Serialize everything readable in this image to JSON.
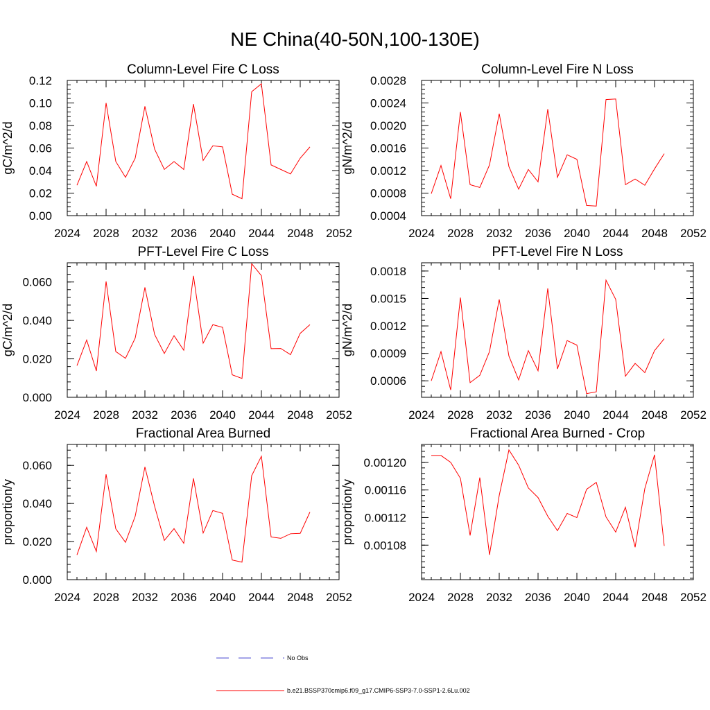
{
  "title": "NE China(40-50N,100-130E)",
  "legend": [
    {
      "label": "No Obs",
      "style": "dashed",
      "color": "#4a4ad0"
    },
    {
      "label": "b.e21.BSSP370cmip6.f09_g17.CMIP6-SSP3-7.0-SSP1-2.6Lu.002",
      "style": "solid",
      "color": "#ff0000"
    }
  ],
  "chart_data": [
    {
      "type": "line",
      "title": "Column-Level Fire C Loss",
      "ylabel": "gC/m^2/d",
      "xlim": [
        2024,
        2052
      ],
      "ylim": [
        0,
        0.12
      ],
      "xticks": [
        2024,
        2028,
        2032,
        2036,
        2040,
        2044,
        2048,
        2052
      ],
      "yticks": [
        0.0,
        0.02,
        0.04,
        0.06,
        0.08,
        0.1,
        0.12
      ],
      "ytick_labels": [
        "0.00",
        "0.02",
        "0.04",
        "0.06",
        "0.08",
        "0.10",
        "0.12"
      ],
      "series": [
        {
          "color": "#ff0000",
          "x": [
            2025,
            2026,
            2027,
            2028,
            2029,
            2030,
            2031,
            2032,
            2033,
            2034,
            2035,
            2036,
            2037,
            2038,
            2039,
            2040,
            2041,
            2042,
            2043,
            2044,
            2045,
            2046,
            2047,
            2048,
            2049
          ],
          "values": [
            0.027,
            0.048,
            0.026,
            0.1,
            0.048,
            0.034,
            0.051,
            0.097,
            0.059,
            0.041,
            0.048,
            0.041,
            0.099,
            0.049,
            0.062,
            0.061,
            0.019,
            0.015,
            0.11,
            0.117,
            0.045,
            0.041,
            0.037,
            0.051,
            0.061
          ]
        }
      ]
    },
    {
      "type": "line",
      "title": "Column-Level Fire N Loss",
      "ylabel": "gN/m^2/d",
      "xlim": [
        2024,
        2052
      ],
      "ylim": [
        0.0004,
        0.0028
      ],
      "xticks": [
        2024,
        2028,
        2032,
        2036,
        2040,
        2044,
        2048,
        2052
      ],
      "yticks": [
        0.0004,
        0.0008,
        0.0012,
        0.0016,
        0.002,
        0.0024,
        0.0028
      ],
      "ytick_labels": [
        "0.0004",
        "0.0008",
        "0.0012",
        "0.0016",
        "0.0020",
        "0.0024",
        "0.0028"
      ],
      "series": [
        {
          "color": "#ff0000",
          "x": [
            2025,
            2026,
            2027,
            2028,
            2029,
            2030,
            2031,
            2032,
            2033,
            2034,
            2035,
            2036,
            2037,
            2038,
            2039,
            2040,
            2041,
            2042,
            2043,
            2044,
            2045,
            2046,
            2047,
            2048,
            2049
          ],
          "values": [
            0.00079,
            0.00129,
            0.0007,
            0.00224,
            0.00095,
            0.0009,
            0.0013,
            0.00221,
            0.00127,
            0.00087,
            0.00122,
            0.001,
            0.00229,
            0.00108,
            0.00148,
            0.0014,
            0.00058,
            0.00057,
            0.00246,
            0.00247,
            0.00095,
            0.00105,
            0.00094,
            0.00123,
            0.0015
          ]
        }
      ]
    },
    {
      "type": "line",
      "title": "PFT-Level Fire C Loss",
      "ylabel": "gC/m^2/d",
      "xlim": [
        2024,
        2052
      ],
      "ylim": [
        0,
        0.07
      ],
      "xticks": [
        2024,
        2028,
        2032,
        2036,
        2040,
        2044,
        2048,
        2052
      ],
      "yticks": [
        0.0,
        0.02,
        0.04,
        0.06
      ],
      "ytick_labels": [
        "0.000",
        "0.020",
        "0.040",
        "0.060"
      ],
      "series": [
        {
          "color": "#ff0000",
          "x": [
            2025,
            2026,
            2027,
            2028,
            2029,
            2030,
            2031,
            2032,
            2033,
            2034,
            2035,
            2036,
            2037,
            2038,
            2039,
            2040,
            2041,
            2042,
            2043,
            2044,
            2045,
            2046,
            2047,
            2048,
            2049
          ],
          "values": [
            0.0165,
            0.0298,
            0.0137,
            0.0603,
            0.0238,
            0.0203,
            0.0308,
            0.0572,
            0.0327,
            0.0228,
            0.0321,
            0.0245,
            0.0632,
            0.0282,
            0.0378,
            0.0364,
            0.0117,
            0.0098,
            0.0695,
            0.0633,
            0.0253,
            0.0254,
            0.0222,
            0.0333,
            0.0378
          ]
        }
      ]
    },
    {
      "type": "line",
      "title": "PFT-Level Fire N Loss",
      "ylabel": "gN/m^2/d",
      "xlim": [
        2024,
        2052
      ],
      "ylim": [
        0.00042,
        0.00189
      ],
      "xticks": [
        2024,
        2028,
        2032,
        2036,
        2040,
        2044,
        2048,
        2052
      ],
      "yticks": [
        0.0006,
        0.0009,
        0.0012,
        0.0015,
        0.0018
      ],
      "ytick_labels": [
        "0.0006",
        "0.0009",
        "0.0012",
        "0.0015",
        "0.0018"
      ],
      "series": [
        {
          "color": "#ff0000",
          "x": [
            2025,
            2026,
            2027,
            2028,
            2029,
            2030,
            2031,
            2032,
            2033,
            2034,
            2035,
            2036,
            2037,
            2038,
            2039,
            2040,
            2041,
            2042,
            2043,
            2044,
            2045,
            2046,
            2047,
            2048,
            2049
          ],
          "values": [
            0.0006,
            0.00092,
            0.0005,
            0.00151,
            0.00058,
            0.00066,
            0.00092,
            0.00149,
            0.00087,
            0.00061,
            0.00093,
            0.00071,
            0.00161,
            0.00073,
            0.00104,
            0.00099,
            0.00046,
            0.00048,
            0.0017,
            0.00149,
            0.00065,
            0.00079,
            0.00069,
            0.00093,
            0.00106
          ]
        }
      ]
    },
    {
      "type": "line",
      "title": "Fractional Area Burned",
      "ylabel": "proportion/y",
      "xlim": [
        2024,
        2052
      ],
      "ylim": [
        0,
        0.071
      ],
      "xticks": [
        2024,
        2028,
        2032,
        2036,
        2040,
        2044,
        2048,
        2052
      ],
      "yticks": [
        0.0,
        0.02,
        0.04,
        0.06
      ],
      "ytick_labels": [
        "0.000",
        "0.020",
        "0.040",
        "0.060"
      ],
      "series": [
        {
          "color": "#ff0000",
          "x": [
            2025,
            2026,
            2027,
            2028,
            2029,
            2030,
            2031,
            2032,
            2033,
            2034,
            2035,
            2036,
            2037,
            2038,
            2039,
            2040,
            2041,
            2042,
            2043,
            2044,
            2045,
            2046,
            2047,
            2048,
            2049
          ],
          "values": [
            0.013,
            0.0275,
            0.0148,
            0.0553,
            0.0267,
            0.0196,
            0.0333,
            0.0592,
            0.0385,
            0.0206,
            0.0268,
            0.0191,
            0.0532,
            0.0245,
            0.0363,
            0.0348,
            0.0103,
            0.0092,
            0.0546,
            0.0648,
            0.0224,
            0.0217,
            0.0241,
            0.0243,
            0.0355
          ]
        }
      ]
    },
    {
      "type": "line",
      "title": "Fractional Area Burned - Crop",
      "ylabel": "proportion/y",
      "xlim": [
        2024,
        2052
      ],
      "ylim": [
        0.00103,
        0.001226
      ],
      "xticks": [
        2024,
        2028,
        2032,
        2036,
        2040,
        2044,
        2048,
        2052
      ],
      "yticks": [
        0.00108,
        0.00112,
        0.00116,
        0.0012
      ],
      "ytick_labels": [
        "0.00108",
        "0.00112",
        "0.00116",
        "0.00120"
      ],
      "series": [
        {
          "color": "#ff0000",
          "x": [
            2025,
            2026,
            2027,
            2028,
            2029,
            2030,
            2031,
            2032,
            2033,
            2034,
            2035,
            2036,
            2037,
            2038,
            2039,
            2040,
            2041,
            2042,
            2043,
            2044,
            2045,
            2046,
            2047,
            2048,
            2049
          ],
          "values": [
            0.00121,
            0.00121,
            0.0012,
            0.001177,
            0.001094,
            0.001178,
            0.001066,
            0.001152,
            0.001218,
            0.001196,
            0.001163,
            0.001149,
            0.001122,
            0.001101,
            0.001126,
            0.00112,
            0.001161,
            0.001171,
            0.001121,
            0.001099,
            0.001135,
            0.001077,
            0.001162,
            0.001211,
            0.001079
          ]
        }
      ]
    }
  ]
}
